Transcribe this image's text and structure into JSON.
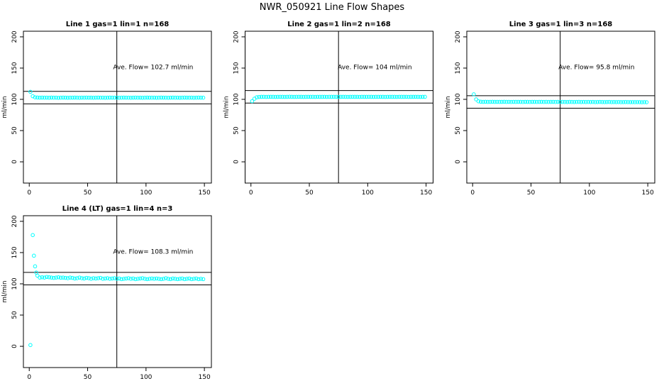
{
  "title": "NWR_050921  Line Flow Shapes",
  "chart_data": [
    {
      "type": "scatter",
      "title": "Line 1 gas=1 lin=1 n=168",
      "ylabel": "ml/min",
      "annotation": "Ave. Flow= 102.7  ml/min",
      "xlim": [
        -5,
        156
      ],
      "ylim": [
        -34,
        209
      ],
      "xticks": [
        0,
        50,
        100,
        150
      ],
      "yticks": [
        0,
        50,
        100,
        150,
        200
      ],
      "hlines": [
        112.7,
        92.7
      ],
      "vline": 75,
      "x": [
        1,
        3,
        5,
        7,
        9,
        11,
        13,
        15,
        17,
        19,
        21,
        23,
        25,
        27,
        29,
        31,
        33,
        35,
        37,
        39,
        41,
        43,
        45,
        47,
        49,
        51,
        53,
        55,
        57,
        59,
        61,
        63,
        65,
        67,
        69,
        71,
        73,
        75,
        77,
        79,
        81,
        83,
        85,
        87,
        89,
        91,
        93,
        95,
        97,
        99,
        101,
        103,
        105,
        107,
        109,
        111,
        113,
        115,
        117,
        119,
        121,
        123,
        125,
        127,
        129,
        131,
        133,
        135,
        137,
        139,
        141,
        143,
        145,
        147,
        149
      ],
      "series": [
        {
          "color": "#00ffff",
          "values": [
            112,
            105,
            103.2,
            102.9,
            102.7,
            102.8,
            102.6,
            102.7,
            102.5,
            102.8,
            102.6,
            102.7,
            102.4,
            102.6,
            102.8,
            102.7,
            102.5,
            102.6,
            102.7,
            102.8,
            102.6,
            102.5,
            102.7,
            102.6,
            102.8,
            102.7,
            102.6,
            102.5,
            102.7,
            102.8,
            102.6,
            102.7,
            102.5,
            102.6,
            102.8,
            102.7,
            102.6,
            102.7,
            102.5,
            102.6,
            102.8,
            102.7,
            102.6,
            102.5,
            102.7,
            102.8,
            102.6,
            102.7,
            102.5,
            102.6,
            102.8,
            102.7,
            102.6,
            102.7,
            102.5,
            102.6,
            102.8,
            102.7,
            102.6,
            102.5,
            102.7,
            102.8,
            102.6,
            102.7,
            102.5,
            102.6,
            102.8,
            102.7,
            102.6,
            102.7,
            102.5,
            102.6,
            102.8,
            102.7,
            102.6
          ]
        }
      ]
    },
    {
      "type": "scatter",
      "title": "Line 2 gas=1 lin=2 n=168",
      "ylabel": "ml/min",
      "annotation": "Ave. Flow= 104  ml/min",
      "xlim": [
        -5,
        156
      ],
      "ylim": [
        -34,
        209
      ],
      "xticks": [
        0,
        50,
        100,
        150
      ],
      "yticks": [
        0,
        50,
        100,
        150,
        200
      ],
      "hlines": [
        114,
        94
      ],
      "vline": 75,
      "x": [
        1,
        3,
        5,
        7,
        9,
        11,
        13,
        15,
        17,
        19,
        21,
        23,
        25,
        27,
        29,
        31,
        33,
        35,
        37,
        39,
        41,
        43,
        45,
        47,
        49,
        51,
        53,
        55,
        57,
        59,
        61,
        63,
        65,
        67,
        69,
        71,
        73,
        75,
        77,
        79,
        81,
        83,
        85,
        87,
        89,
        91,
        93,
        95,
        97,
        99,
        101,
        103,
        105,
        107,
        109,
        111,
        113,
        115,
        117,
        119,
        121,
        123,
        125,
        127,
        129,
        131,
        133,
        135,
        137,
        139,
        141,
        143,
        145,
        147,
        149
      ],
      "series": [
        {
          "color": "#00ffff",
          "values": [
            97,
            101,
            103.3,
            103.8,
            104,
            104.1,
            103.9,
            104,
            104.1,
            104,
            103.9,
            104,
            104.1,
            104,
            103.9,
            104,
            104.2,
            104,
            103.9,
            104,
            104.1,
            104,
            103.9,
            104,
            104.1,
            104,
            104,
            103.9,
            104.1,
            104,
            104,
            104.1,
            103.9,
            104,
            104,
            104.1,
            104,
            103.9,
            104,
            104.1,
            104,
            103.9,
            104,
            104.1,
            104,
            104,
            103.9,
            104.1,
            104,
            104,
            104.1,
            104,
            103.9,
            104,
            104,
            104.1,
            104,
            103.9,
            104,
            104.1,
            104,
            104,
            103.9,
            104.1,
            104,
            104,
            104.1,
            103.9,
            104,
            104,
            104.1,
            104,
            103.9,
            104,
            104
          ]
        }
      ]
    },
    {
      "type": "scatter",
      "title": "Line 3 gas=1 lin=3 n=168",
      "ylabel": "ml/min",
      "annotation": "Ave. Flow= 95.8  ml/min",
      "xlim": [
        -5,
        156
      ],
      "ylim": [
        -34,
        209
      ],
      "xticks": [
        0,
        50,
        100,
        150
      ],
      "yticks": [
        0,
        50,
        100,
        150,
        200
      ],
      "hlines": [
        105.8,
        85.8
      ],
      "vline": 75,
      "x": [
        1,
        3,
        5,
        7,
        9,
        11,
        13,
        15,
        17,
        19,
        21,
        23,
        25,
        27,
        29,
        31,
        33,
        35,
        37,
        39,
        41,
        43,
        45,
        47,
        49,
        51,
        53,
        55,
        57,
        59,
        61,
        63,
        65,
        67,
        69,
        71,
        73,
        75,
        77,
        79,
        81,
        83,
        85,
        87,
        89,
        91,
        93,
        95,
        97,
        99,
        101,
        103,
        105,
        107,
        109,
        111,
        113,
        115,
        117,
        119,
        121,
        123,
        125,
        127,
        129,
        131,
        133,
        135,
        137,
        139,
        141,
        143,
        145,
        147,
        149
      ],
      "series": [
        {
          "color": "#00ffff",
          "values": [
            108,
            100,
            96.8,
            96.2,
            96,
            96.1,
            95.9,
            96,
            96.1,
            95.9,
            96,
            95.9,
            96,
            96.1,
            95.9,
            96,
            95.8,
            96,
            95.9,
            96,
            95.9,
            95.8,
            96,
            95.9,
            95.8,
            96,
            95.9,
            95.8,
            95.9,
            96,
            95.8,
            95.9,
            95.8,
            95.9,
            96,
            95.8,
            95.9,
            95.8,
            95.9,
            95.8,
            95.7,
            95.9,
            95.8,
            95.7,
            95.8,
            95.9,
            95.7,
            95.8,
            95.7,
            95.8,
            95.7,
            95.8,
            95.6,
            95.7,
            95.8,
            95.7,
            95.6,
            95.7,
            95.8,
            95.6,
            95.7,
            95.6,
            95.7,
            95.5,
            95.6,
            95.7,
            95.6,
            95.5,
            95.6,
            95.5,
            95.6,
            95.5,
            95.4,
            95.5,
            95.4
          ]
        }
      ]
    },
    {
      "type": "scatter",
      "title": "Line 4 (LT) gas=1 lin=4 n=3",
      "ylabel": "ml/min",
      "annotation": "Ave. Flow= 108.3  ml/min",
      "xlim": [
        -5,
        156
      ],
      "ylim": [
        -34,
        209
      ],
      "xticks": [
        0,
        50,
        100,
        150
      ],
      "yticks": [
        0,
        50,
        100,
        150,
        200
      ],
      "hlines": [
        118.3,
        98.3
      ],
      "vline": 75,
      "x": [
        1,
        3,
        4,
        5,
        6,
        7,
        9,
        11,
        13,
        15,
        17,
        19,
        21,
        23,
        25,
        27,
        29,
        31,
        33,
        35,
        37,
        39,
        41,
        43,
        45,
        47,
        49,
        51,
        53,
        55,
        57,
        59,
        61,
        63,
        65,
        67,
        69,
        71,
        73,
        75,
        77,
        79,
        81,
        83,
        85,
        87,
        89,
        91,
        93,
        95,
        97,
        99,
        101,
        103,
        105,
        107,
        109,
        111,
        113,
        115,
        117,
        119,
        121,
        123,
        125,
        127,
        129,
        131,
        133,
        135,
        137,
        139,
        141,
        143,
        145,
        147,
        149
      ],
      "series": [
        {
          "color": "#00ffff",
          "values": [
            2,
            178,
            145,
            128,
            118,
            113,
            110,
            110.5,
            110,
            111,
            110.5,
            110,
            109.5,
            110,
            110.5,
            109.8,
            110,
            109.5,
            109,
            110,
            109.5,
            108.5,
            109,
            110,
            109,
            108.5,
            109.5,
            109,
            108,
            109,
            108.5,
            109,
            109.5,
            108,
            108.5,
            109,
            108,
            108.5,
            109,
            108,
            108.5,
            107.5,
            108,
            108.5,
            109,
            108,
            108.5,
            107.5,
            108,
            108.5,
            109,
            108,
            107.5,
            108,
            108.5,
            108,
            108.5,
            108,
            107.5,
            108,
            109,
            108,
            107.5,
            108.5,
            108,
            107.5,
            108,
            108.5,
            107.5,
            108,
            108.5,
            107.5,
            108,
            108.5,
            107.5,
            108,
            107.5
          ]
        }
      ]
    }
  ]
}
